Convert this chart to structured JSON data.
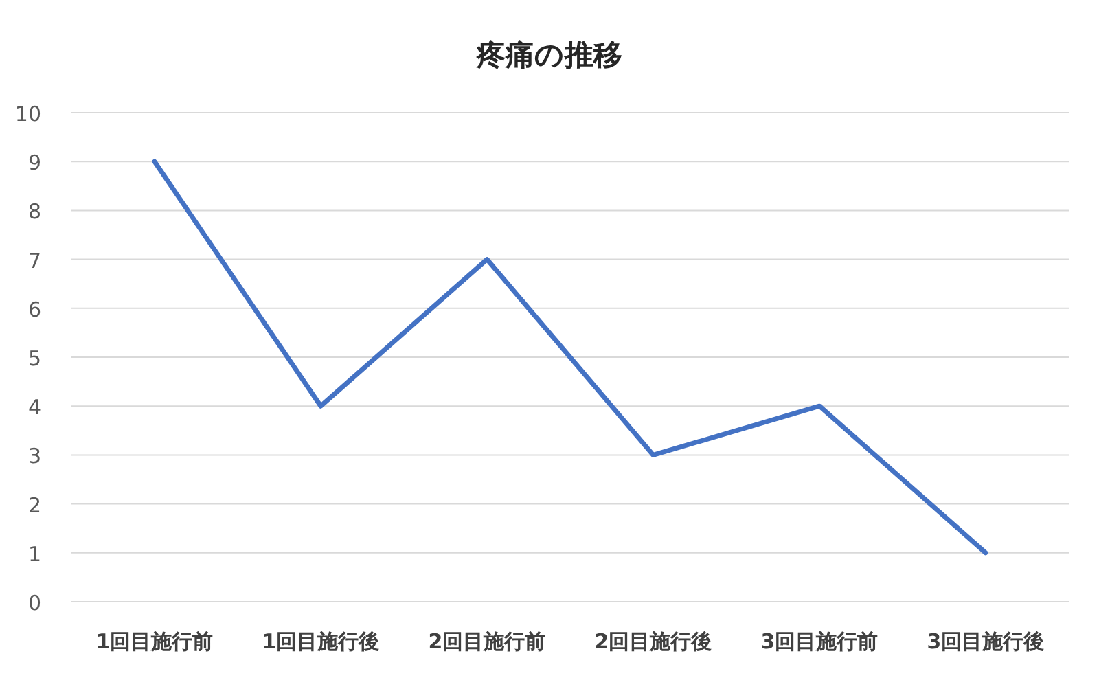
{
  "chart_data": {
    "type": "line",
    "title": "疼痛の推移",
    "categories": [
      "1回目施行前",
      "1回目施行後",
      "2回目施行前",
      "2回目施行後",
      "3回目施行前",
      "3回目施行後"
    ],
    "series": [
      {
        "color": "#4472c4",
        "values": [
          9,
          4,
          7,
          3,
          4,
          1
        ]
      }
    ],
    "ylim": [
      0,
      10
    ],
    "yticks": [
      0,
      1,
      2,
      3,
      4,
      5,
      6,
      7,
      8,
      9,
      10
    ],
    "grid": "y",
    "marker": "none",
    "line_style": "solid"
  }
}
